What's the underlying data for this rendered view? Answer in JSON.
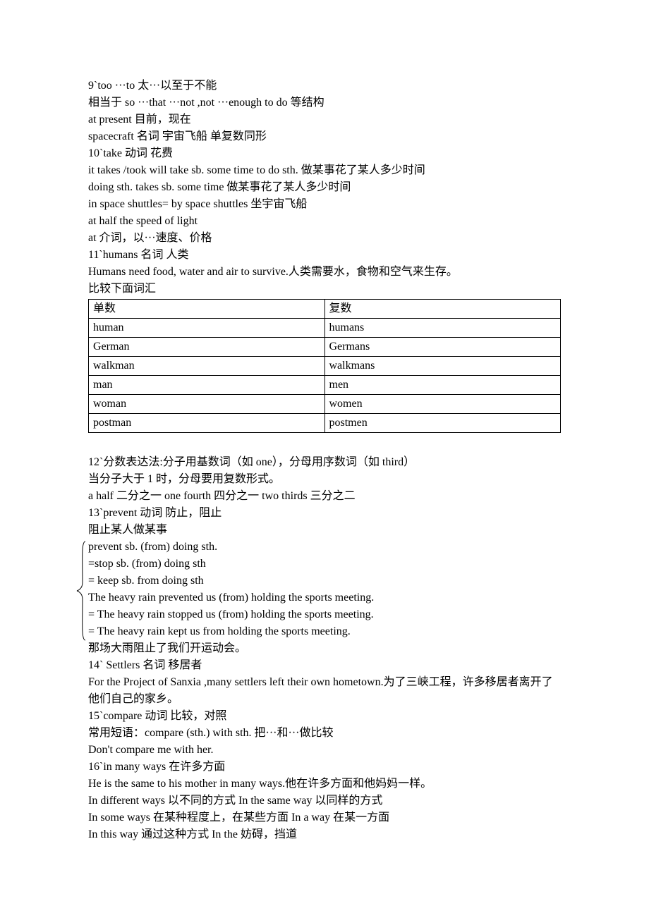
{
  "lines_a": [
    "9`too ···to    太···以至于不能",
    "相当于 so ···that ···not ,not ···enough to do 等结构",
    "at present 目前，现在",
    "spacecraft 名词 宇宙飞船 单复数同形",
    "10`take   动词 花费",
    "it takes /took will take sb. some time to do sth. 做某事花了某人多少时间",
    "doing sth. takes sb. some time    做某事花了某人多少时间",
    "in space shuttles= by space shuttles 坐宇宙飞船",
    "at half the speed of light",
    "at 介词，以···速度、价格",
    "11`humans 名词 人类",
    "Humans need food, water and air to survive.人类需要水，食物和空气来生存。",
    "比较下面词汇"
  ],
  "table": {
    "header_singular": "单数",
    "header_plural": "复数",
    "rows": [
      [
        "human",
        "humans"
      ],
      [
        "German",
        "Germans"
      ],
      [
        "walkman",
        "walkmans"
      ],
      [
        "man",
        "men"
      ],
      [
        "woman",
        "women"
      ],
      [
        "postman",
        "postmen"
      ]
    ]
  },
  "lines_b": [
    "",
    "12`分数表达法:分子用基数词（如 one），分母用序数词（如 third）",
    "当分子大于 1 时，分母要用复数形式。",
    "a half 二分之一      one fourth 四分之一      two thirds 三分之二",
    "13`prevent 动词 防止，阻止",
    "阻止某人做某事"
  ],
  "brace_lines": [
    "prevent sb. (from) doing sth.",
    "=stop sb. (from) doing sth",
    "= keep sb. from doing sth",
    "The heavy rain prevented us (from) holding the sports meeting.",
    "= The heavy rain stopped us (from) holding the sports meeting.",
    "= The heavy rain kept us from holding the sports meeting."
  ],
  "lines_c": [
    "那场大雨阻止了我们开运动会。",
    "14` Settlers 名词 移居者",
    "For the Project of Sanxia ,many settlers left their own hometown.为了三峡工程，许多移居者离开了他们自己的家乡。",
    "15`compare   动词 比较，对照",
    "常用短语：compare (sth.) with sth. 把···和···做比较",
    "Don't compare me with her.",
    "16`in many ways 在许多方面",
    "He is the same to his mother in many ways.他在许多方面和他妈妈一样。",
    "In different ways 以不同的方式 In the same way 以同样的方式",
    "In some ways 在某种程度上，在某些方面 In a way 在某一方面",
    "In this way 通过这种方式 In the   妨碍，挡道"
  ],
  "brace_svg": {
    "stroke": "#000000",
    "stroke_width": 1
  }
}
